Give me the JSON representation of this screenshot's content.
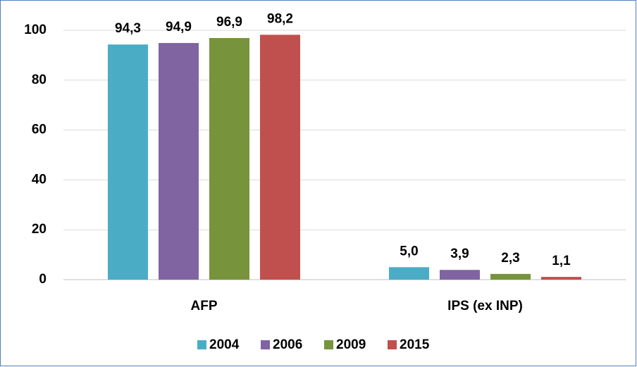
{
  "chart_data": {
    "type": "bar",
    "categories": [
      "AFP",
      "IPS (ex INP)"
    ],
    "series": [
      {
        "name": "2004",
        "color": "#4bacc6",
        "values": [
          94.3,
          5.0
        ],
        "value_labels": [
          "94,3",
          "5,0"
        ]
      },
      {
        "name": "2006",
        "color": "#8064a2",
        "values": [
          94.9,
          3.9
        ],
        "value_labels": [
          "94,9",
          "3,9"
        ]
      },
      {
        "name": "2009",
        "color": "#77933c",
        "values": [
          96.9,
          2.3
        ],
        "value_labels": [
          "96,9",
          "2,3"
        ]
      },
      {
        "name": "2015",
        "color": "#c0504d",
        "values": [
          98.2,
          1.1
        ],
        "value_labels": [
          "98,2",
          "1,1"
        ]
      }
    ],
    "ylim": [
      0,
      100
    ],
    "yticks": [
      0,
      20,
      40,
      60,
      80,
      100
    ],
    "grid": true,
    "legend": "bottom"
  }
}
